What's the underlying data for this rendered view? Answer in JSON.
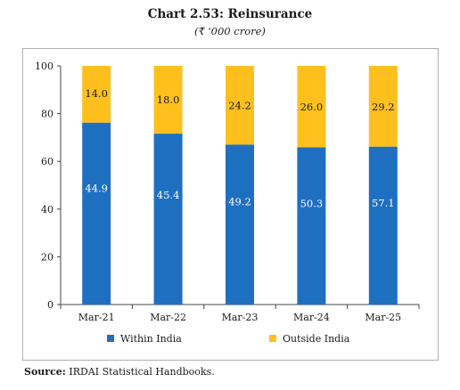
{
  "page": {
    "title": "Chart 2.53: Reinsurance",
    "subtitle": "(₹ '000 crore)",
    "source_label": "Source:",
    "source_text": "IRDAI Statistical Handbooks."
  },
  "chart_data": {
    "type": "bar",
    "stacked": true,
    "categories": [
      "Mar-21",
      "Mar-22",
      "Mar-23",
      "Mar-24",
      "Mar-25"
    ],
    "series": [
      {
        "name": "Within India",
        "values": [
          44.9,
          45.4,
          49.2,
          50.3,
          57.1
        ],
        "color": "#1f6fc1"
      },
      {
        "name": "Outside India",
        "values": [
          14.0,
          18.0,
          24.2,
          26.0,
          29.2
        ],
        "color": "#ffc01e"
      }
    ],
    "normalized_percent_axis": true,
    "ylim": [
      0,
      100
    ],
    "yticks": [
      0,
      20,
      40,
      60,
      80,
      100
    ],
    "grid": false,
    "legend_position": "bottom"
  }
}
